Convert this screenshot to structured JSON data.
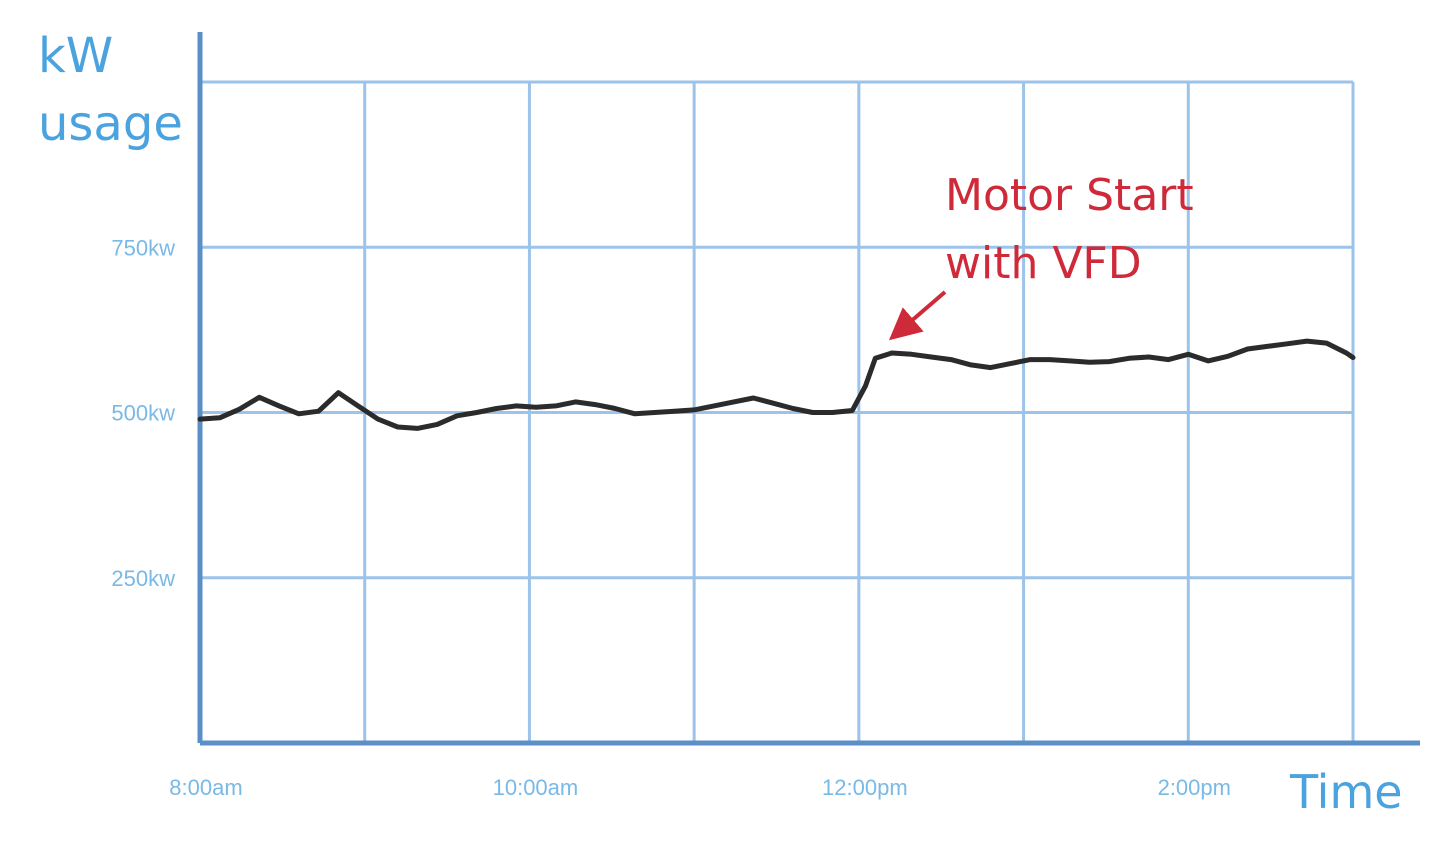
{
  "colors": {
    "axis": "#5b8fc7",
    "grid": "#9cc3ea",
    "axis_label": "#4aa3df",
    "tick_label": "#79b9e6",
    "series": "#2b2b2b",
    "annotation": "#cf2a39"
  },
  "chart_data": {
    "type": "line",
    "title": "",
    "ylabel_lines": [
      "kW",
      "usage"
    ],
    "xlabel": "Time",
    "ylim": [
      0,
      1000
    ],
    "xlim": [
      8,
      15
    ],
    "y_ticks": [
      {
        "value": 250,
        "label": "250kw"
      },
      {
        "value": 500,
        "label": "500kw"
      },
      {
        "value": 750,
        "label": "750kw"
      }
    ],
    "x_ticks": [
      {
        "value": 8,
        "label": "8:00am"
      },
      {
        "value": 10,
        "label": "10:00am"
      },
      {
        "value": 12,
        "label": "12:00pm"
      },
      {
        "value": 14,
        "label": "2:00pm"
      }
    ],
    "x_gridlines": [
      9,
      10,
      11,
      12,
      13,
      14,
      15
    ],
    "y_gridlines": [
      250,
      500,
      750,
      1000
    ],
    "grid": true,
    "series": [
      {
        "x": [
          8.0,
          8.12,
          8.24,
          8.36,
          8.48,
          8.6,
          8.72,
          8.84,
          8.96,
          9.08,
          9.2,
          9.32,
          9.44,
          9.56,
          9.68,
          9.8,
          9.92,
          10.04,
          10.16,
          10.28,
          10.4,
          10.52,
          10.64,
          10.76,
          10.88,
          11.0,
          11.12,
          11.24,
          11.36,
          11.48,
          11.6,
          11.72,
          11.84,
          11.96,
          12.04,
          12.1,
          12.2,
          12.32,
          12.44,
          12.56,
          12.68,
          12.8,
          12.92,
          13.04,
          13.16,
          13.28,
          13.4,
          13.52,
          13.64,
          13.76,
          13.88,
          14.0,
          14.12,
          14.24,
          14.36,
          14.48,
          14.6,
          14.72,
          14.84,
          14.96,
          15.0
        ],
        "y": [
          490,
          492,
          505,
          523,
          510,
          498,
          502,
          530,
          510,
          490,
          478,
          476,
          482,
          495,
          500,
          506,
          510,
          508,
          510,
          516,
          512,
          506,
          498,
          500,
          502,
          504,
          510,
          516,
          522,
          514,
          506,
          500,
          500,
          503,
          540,
          582,
          590,
          588,
          584,
          580,
          572,
          568,
          574,
          580,
          580,
          578,
          576,
          577,
          582,
          584,
          580,
          588,
          578,
          585,
          596,
          600,
          604,
          608,
          605,
          590,
          583
        ]
      }
    ],
    "annotations": [
      {
        "lines": [
          "Motor Start",
          "with VFD"
        ],
        "arrow_to": {
          "x": 12.25,
          "y": 590
        }
      }
    ]
  }
}
